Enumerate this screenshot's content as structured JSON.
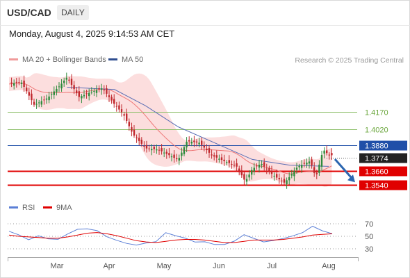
{
  "header": {
    "symbol": "USD/CAD",
    "timeframe": "DAILY"
  },
  "datetime": "Monday, August 4, 2025 9:14:53 AM CET",
  "legend": {
    "ma20_label": "MA 20 + Bollinger Bands",
    "ma50_label": "MA 50",
    "credit": "Research © 2025 Trading Central",
    "rsi_label": "RSI",
    "rsi_ma_label": "9MA"
  },
  "colors": {
    "bollinger_fill": "#fbd3d3",
    "ma20": "#ee7777",
    "ma50": "#5b6fb5",
    "resistance": "#8ec06c",
    "pivot": "#1f4fa8",
    "support": "#e00000",
    "bull_candle": "#2e8b3c",
    "bear_candle": "#c0282d",
    "rsi": "#5b7fd6",
    "rsi_ma": "#e00000",
    "arrow": "#2b66b0"
  },
  "chart_data": [
    {
      "type": "candlestick",
      "title": "USD/CAD",
      "timeframe": "Daily",
      "x_ticks": [
        "Mar",
        "Apr",
        "May",
        "Jun",
        "Jul",
        "Aug"
      ],
      "y_range": [
        1.344,
        1.455
      ],
      "last_price": 1.3774,
      "price_levels": [
        {
          "label": "1.4170",
          "value": 1.417,
          "kind": "resistance"
        },
        {
          "label": "1.4020",
          "value": 1.402,
          "kind": "resistance"
        },
        {
          "label": "1.3880",
          "value": 1.388,
          "kind": "pivot"
        },
        {
          "label": "1.3774",
          "value": 1.3774,
          "kind": "last"
        },
        {
          "label": "1.3660",
          "value": 1.366,
          "kind": "support"
        },
        {
          "label": "1.3540",
          "value": 1.354,
          "kind": "support"
        }
      ],
      "close_path": [
        {
          "x": "Feb 10",
          "y": 1.441
        },
        {
          "x": "Feb 17",
          "y": 1.42
        },
        {
          "x": "Feb 24",
          "y": 1.427
        },
        {
          "x": "Mar 3",
          "y": 1.44
        },
        {
          "x": "Mar 7",
          "y": 1.448
        },
        {
          "x": "Mar 14",
          "y": 1.432
        },
        {
          "x": "Mar 21",
          "y": 1.436
        },
        {
          "x": "Mar 28",
          "y": 1.438
        },
        {
          "x": "Apr 4",
          "y": 1.422
        },
        {
          "x": "Apr 9",
          "y": 1.412
        },
        {
          "x": "Apr 14",
          "y": 1.395
        },
        {
          "x": "Apr 21",
          "y": 1.384
        },
        {
          "x": "Apr 28",
          "y": 1.385
        },
        {
          "x": "May 5",
          "y": 1.381
        },
        {
          "x": "May 9",
          "y": 1.378
        },
        {
          "x": "May 14",
          "y": 1.394
        },
        {
          "x": "May 21",
          "y": 1.391
        },
        {
          "x": "May 28",
          "y": 1.378
        },
        {
          "x": "Jun 4",
          "y": 1.372
        },
        {
          "x": "Jun 11",
          "y": 1.368
        },
        {
          "x": "Jun 16",
          "y": 1.356
        },
        {
          "x": "Jun 20",
          "y": 1.368
        },
        {
          "x": "Jun 25",
          "y": 1.374
        },
        {
          "x": "Jul 1",
          "y": 1.366
        },
        {
          "x": "Jul 8",
          "y": 1.358
        },
        {
          "x": "Jul 15",
          "y": 1.37
        },
        {
          "x": "Jul 22",
          "y": 1.373
        },
        {
          "x": "Jul 25",
          "y": 1.358
        },
        {
          "x": "Jul 29",
          "y": 1.382
        },
        {
          "x": "Aug 1",
          "y": 1.3774
        }
      ],
      "ma50_path": [
        {
          "x": "Mar 7",
          "y": 1.438
        },
        {
          "x": "Apr 4",
          "y": 1.436
        },
        {
          "x": "Apr 21",
          "y": 1.422
        },
        {
          "x": "May 9",
          "y": 1.404
        },
        {
          "x": "Jun 2",
          "y": 1.388
        },
        {
          "x": "Jun 20",
          "y": 1.376
        },
        {
          "x": "Jul 11",
          "y": 1.371
        },
        {
          "x": "Aug 1",
          "y": 1.37
        }
      ]
    },
    {
      "type": "line",
      "title": "RSI",
      "y_ticks": [
        70,
        50,
        30
      ],
      "y_range": [
        20,
        80
      ],
      "series": [
        {
          "name": "RSI",
          "values": [
            58,
            52,
            45,
            50,
            47,
            44,
            55,
            60,
            63,
            58,
            50,
            43,
            39,
            36,
            39,
            42,
            55,
            52,
            46,
            42,
            40,
            38,
            36,
            43,
            52,
            47,
            41,
            43,
            47,
            50,
            57,
            65,
            60,
            53
          ]
        },
        {
          "name": "9MA",
          "values": [
            52,
            50,
            49,
            48,
            47,
            47,
            49,
            52,
            55,
            56,
            54,
            51,
            47,
            43,
            41,
            40,
            42,
            44,
            45,
            45,
            44,
            42,
            40,
            40,
            42,
            44,
            44,
            44,
            45,
            47,
            49,
            52,
            53,
            54
          ]
        }
      ]
    }
  ]
}
